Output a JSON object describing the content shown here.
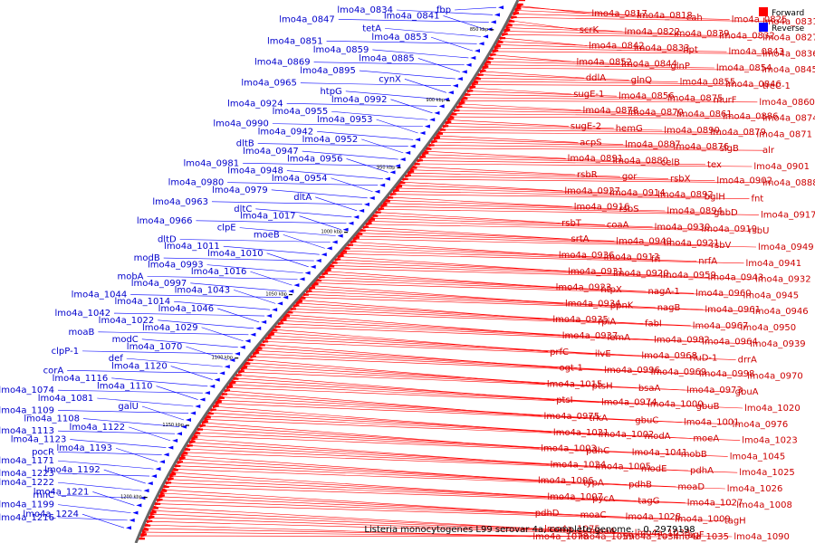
{
  "title": "Listeria monocytogenes L99 serovar 4a, complete genome. - 0..2979198",
  "legend": {
    "forward_label": "Forward",
    "reverse_label": "Reverse",
    "forward_color": "#ff0000",
    "reverse_color": "#0000ff"
  },
  "position_marks": [
    "850 kbp",
    "900 kbp",
    "950 kbp",
    "1000 kbp",
    "1050 kbp",
    "1100 kbp",
    "1150 kbp",
    "1200 kbp"
  ],
  "forward_genes": [
    "lmo4a_0817",
    "lmo4a_0818",
    "cah",
    "lmo4a_0825",
    "lmo4a_0831",
    "scrK",
    "lmo4a_0822",
    "lmo4a_0839",
    "lmo4a_0832",
    "lmo4a_0827",
    "lmo4a_0842",
    "lmo4a_0833",
    "hpt",
    "lmo4a_0843",
    "lmo4a_0836",
    "lmo4a_0852",
    "lmo4a_0844",
    "glnP",
    "lmo4a_0854",
    "lmo4a_0845",
    "ddlA",
    "glnQ",
    "lmo4a_0855",
    "lmo4a_0846",
    "treC-1",
    "sugE-1",
    "lmo4a_0856",
    "lmo4a_0875",
    "murF",
    "lmo4a_0860",
    "lmo4a_0878",
    "lmo4a_0870",
    "lmo4a_0861",
    "lmo4a_0886",
    "lmo4a_0874",
    "sugE-2",
    "hemG",
    "lmo4a_0890",
    "lmo4a_0879",
    "lmo4a_0871",
    "acpS",
    "lmo4a_0887",
    "lmo4a_0876",
    "sigB",
    "alr",
    "lmo4a_0891",
    "lmo4a_0880",
    "celB",
    "tex",
    "lmo4a_0901",
    "rsbR",
    "gor",
    "rsbX",
    "lmo4a_0902",
    "lmo4a_0888",
    "lmo4a_0927",
    "lmo4a_0914",
    "lmo4a_0892",
    "bglH",
    "fnt",
    "lmo4a_0916",
    "rsbS",
    "lmo4a_0894",
    "gabD",
    "lmo4a_0917",
    "rsbT",
    "coaA",
    "lmo4a_0930",
    "lmo4a_0919",
    "rsbU",
    "srtA",
    "lmo4a_0940",
    "lmo4a_0921",
    "rsbV",
    "lmo4a_0949",
    "lmo4a_0936",
    "lmo4a_0913",
    "fri",
    "nrfA",
    "lmo4a_0941",
    "lmo4a_0931",
    "lmo4a_0920",
    "lmo4a_0959",
    "lmo4a_0943",
    "lmo4a_0932",
    "lmo4a_0923",
    "htpX",
    "nagA-1",
    "lmo4a_0960",
    "lmo4a_0945",
    "lmo4a_0934",
    "ppnK",
    "nagB",
    "lmo4a_0961",
    "lmo4a_0946",
    "lmo4a_0935",
    "rpiA",
    "fabI",
    "lmo4a_0967",
    "lmo4a_0950",
    "lmo4a_0937",
    "lemA",
    "lmo4a_0982",
    "lmo4a_0964",
    "lmo4a_0939",
    "prfC",
    "ilvE",
    "lmo4a_0968",
    "rluD-1",
    "drrA",
    "ogt-1",
    "lmo4a_0996",
    "lmo4a_0969",
    "lmo4a_0998",
    "lmo4a_0970",
    "lmo4a_1015",
    "ptsH",
    "bsaA",
    "lmo4a_0973",
    "gbuA",
    "ptsI",
    "lmo4a_0974",
    "lmo4a_1000",
    "gbuB",
    "lmo4a_1020",
    "lmo4a_0975",
    "trkA",
    "gbuC",
    "lmo4a_1001",
    "lmo4a_0976",
    "lmo4a_1021",
    "lmo4a_1002",
    "modA",
    "moeA",
    "lmo4a_1023",
    "lmo4a_1003",
    "pdhC",
    "lmo4a_1041",
    "mobB",
    "lmo4a_1045",
    "lmo4a_1024",
    "lmo4a_1005",
    "modE",
    "pdhA",
    "lmo4a_1025",
    "lmo4a_1006",
    "typA",
    "pdhB",
    "moaD",
    "lmo4a_1026",
    "lmo4a_1007",
    "pycA",
    "tagG",
    "lmo4a_1027",
    "lmo4a_1008",
    "pdhD",
    "moaC",
    "lmo4a_1028",
    "lmo4a_1009",
    "tagH",
    "lmo4a_1075",
    "moaA",
    "lmo4a_1033",
    "tagF",
    "lmo4a_1090",
    "lmo4a_1078",
    "lmo4a_1059",
    "lmo4a_1034",
    "lmo4a_1035"
  ],
  "reverse_genes": [
    "fbp",
    "lmo4a_0834",
    "lmo4a_0847",
    "lmo4a_0841",
    "tetA",
    "lmo4a_0851",
    "lmo4a_0853",
    "lmo4a_0859",
    "lmo4a_0869",
    "lmo4a_0885",
    "lmo4a_0895",
    "lmo4a_0965",
    "cynX",
    "htpG",
    "lmo4a_0924",
    "lmo4a_0992",
    "lmo4a_0955",
    "lmo4a_0990",
    "lmo4a_0953",
    "lmo4a_0942",
    "dltB",
    "lmo4a_0952",
    "lmo4a_0947",
    "lmo4a_0981",
    "lmo4a_0956",
    "lmo4a_0948",
    "lmo4a_0980",
    "lmo4a_0954",
    "lmo4a_0979",
    "lmo4a_0963",
    "dltA",
    "dltC",
    "lmo4a_0966",
    "lmo4a_1017",
    "clpE",
    "dltD",
    "moeB",
    "lmo4a_1011",
    "modB",
    "lmo4a_1010",
    "lmo4a_0993",
    "mobA",
    "lmo4a_1016",
    "lmo4a_0997",
    "lmo4a_1044",
    "lmo4a_1043",
    "lmo4a_1014",
    "lmo4a_1042",
    "lmo4a_1046",
    "lmo4a_1022",
    "moaB",
    "lmo4a_1029",
    "modC",
    "clpP-1",
    "lmo4a_1070",
    "def",
    "corA",
    "lmo4a_1120",
    "lmo4a_1116",
    "lmo4a_1074",
    "lmo4a_1110",
    "lmo4a_1081",
    "lmo4a_1109",
    "galU",
    "lmo4a_1108",
    "lmo4a_1113",
    "lmo4a_1122",
    "lmo4a_1123",
    "pocR",
    "lmo4a_1193",
    "lmo4a_1171",
    "lmo4a_1223",
    "lmo4a_1192",
    "lmo4a_1222",
    "rnhC",
    "lmo4a_1221",
    "lmo4a_1199",
    "lmo4a_1216",
    "lmo4a_1224"
  ]
}
